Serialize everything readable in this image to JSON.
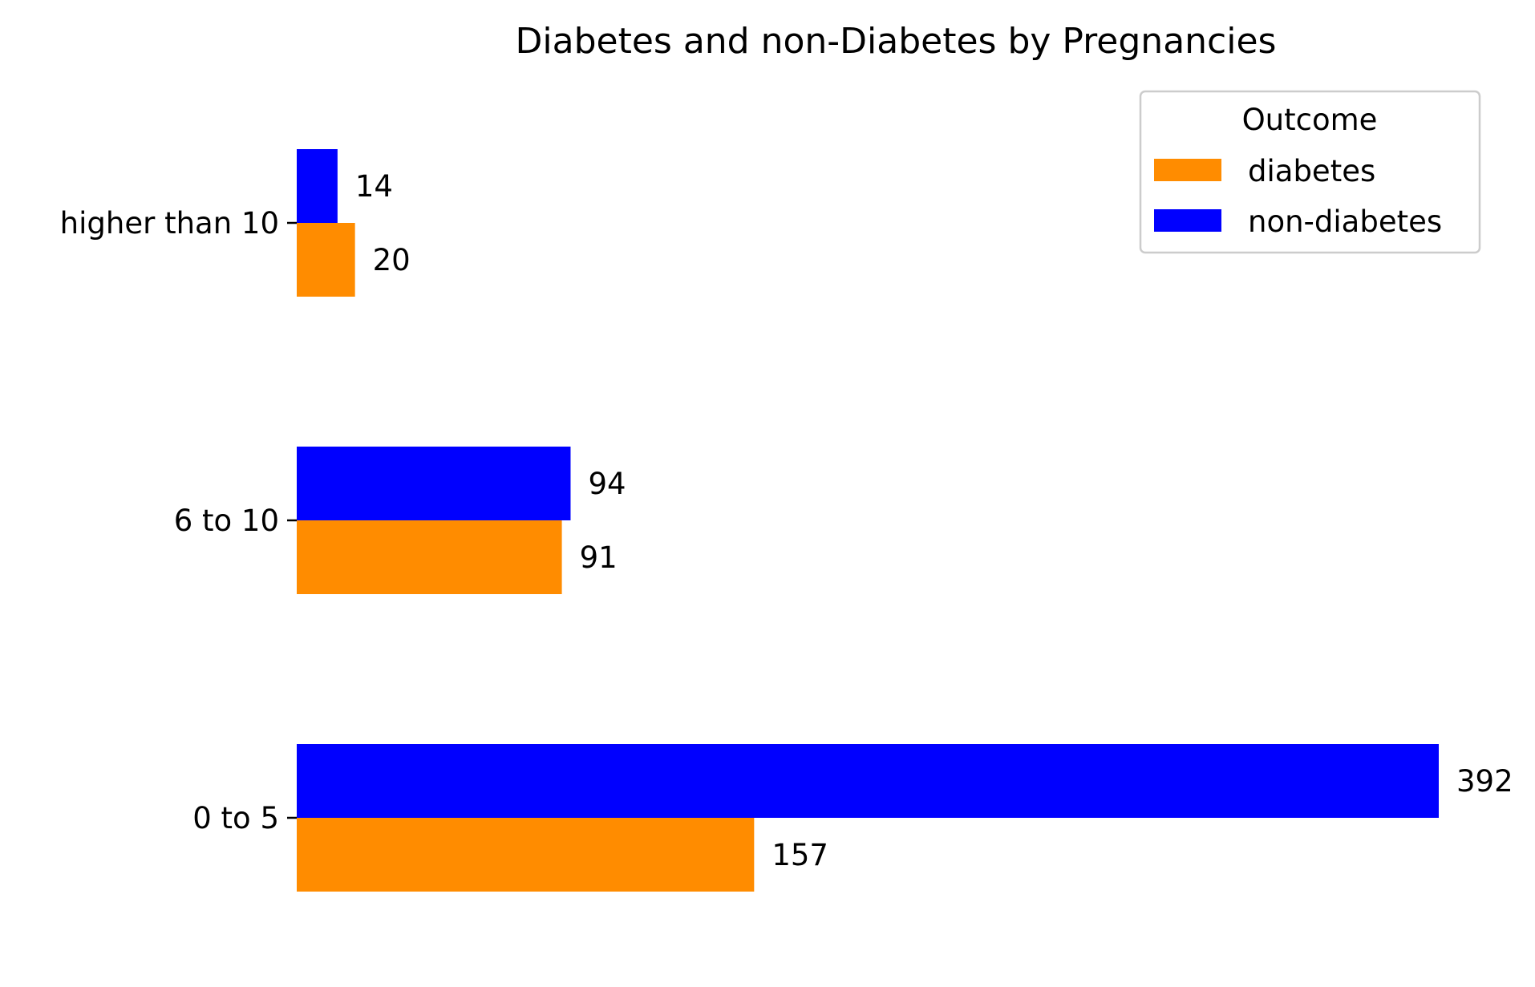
{
  "chart_data": {
    "type": "bar",
    "orientation": "horizontal",
    "title": "Diabetes and non-Diabetes by Pregnancies",
    "xlabel": "",
    "ylabel": "",
    "categories": [
      "0 to 5",
      "6 to 10",
      "higher than 10"
    ],
    "series": [
      {
        "name": "non-diabetes",
        "color": "#0000ff",
        "values": [
          392,
          94,
          14
        ]
      },
      {
        "name": "diabetes",
        "color": "#ff8c00",
        "values": [
          157,
          91,
          20
        ]
      }
    ],
    "xlim": [
      0,
      392
    ],
    "grid": false,
    "legend": {
      "title": "Outcome",
      "placement": "top-right",
      "entries": [
        {
          "name": "diabetes",
          "color": "#ff8c00"
        },
        {
          "name": "non-diabetes",
          "color": "#0000ff"
        }
      ]
    }
  }
}
